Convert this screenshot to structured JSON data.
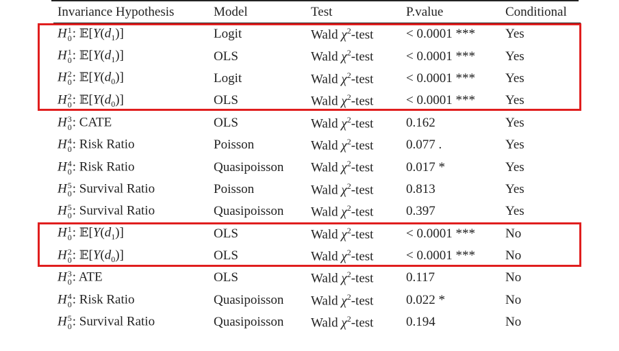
{
  "table": {
    "header": {
      "hypothesis": "Invariance Hypothesis",
      "model": "Model",
      "test": "Test",
      "pvalue": "P.value",
      "conditional": "Conditional"
    },
    "rows": [
      {
        "h_sup": "1",
        "h_sub": "0",
        "target_kind": "expectation",
        "d_sub": "1",
        "label": "",
        "model": "Logit",
        "test_word": "Wald",
        "test_sup": "2",
        "test_suffix": "-test",
        "pvalue": "< 0.0001 ***",
        "conditional": "Yes"
      },
      {
        "h_sup": "1",
        "h_sub": "0",
        "target_kind": "expectation",
        "d_sub": "1",
        "label": "",
        "model": "OLS",
        "test_word": "Wald",
        "test_sup": "2",
        "test_suffix": "-test",
        "pvalue": "< 0.0001 ***",
        "conditional": "Yes"
      },
      {
        "h_sup": "2",
        "h_sub": "0",
        "target_kind": "expectation",
        "d_sub": "0",
        "label": "",
        "model": "Logit",
        "test_word": "Wald",
        "test_sup": "2",
        "test_suffix": "-test",
        "pvalue": "< 0.0001 ***",
        "conditional": "Yes"
      },
      {
        "h_sup": "2",
        "h_sub": "0",
        "target_kind": "expectation",
        "d_sub": "0",
        "label": "",
        "model": "OLS",
        "test_word": "Wald",
        "test_sup": "2",
        "test_suffix": "-test",
        "pvalue": "< 0.0001 ***",
        "conditional": "Yes"
      },
      {
        "h_sup": "3",
        "h_sub": "0",
        "target_kind": "text",
        "d_sub": "",
        "label": "CATE",
        "model": "OLS",
        "test_word": "Wald",
        "test_sup": "2",
        "test_suffix": "-test",
        "pvalue": "0.162",
        "conditional": "Yes"
      },
      {
        "h_sup": "4",
        "h_sub": "0",
        "target_kind": "text",
        "d_sub": "",
        "label": "Risk Ratio",
        "model": "Poisson",
        "test_word": "Wald",
        "test_sup": "2",
        "test_suffix": "-test",
        "pvalue": "0.077 .",
        "conditional": "Yes"
      },
      {
        "h_sup": "4",
        "h_sub": "0",
        "target_kind": "text",
        "d_sub": "",
        "label": "Risk Ratio",
        "model": "Quasipoisson",
        "test_word": "Wald",
        "test_sup": "2",
        "test_suffix": "-test",
        "pvalue": "0.017 *",
        "conditional": "Yes"
      },
      {
        "h_sup": "5",
        "h_sub": "0",
        "target_kind": "text",
        "d_sub": "",
        "label": "Survival Ratio",
        "model": "Poisson",
        "test_word": "Wald",
        "test_sup": "2",
        "test_suffix": "-test",
        "pvalue": "0.813",
        "conditional": "Yes"
      },
      {
        "h_sup": "5",
        "h_sub": "0",
        "target_kind": "text",
        "d_sub": "",
        "label": "Survival Ratio",
        "model": "Quasipoisson",
        "test_word": "Wald",
        "test_sup": "2",
        "test_suffix": "-test",
        "pvalue": "0.397",
        "conditional": "Yes"
      },
      {
        "h_sup": "1",
        "h_sub": "0",
        "target_kind": "expectation",
        "d_sub": "1",
        "label": "",
        "model": "OLS",
        "test_word": "Wald",
        "test_sup": "2",
        "test_suffix": "-test",
        "pvalue": "< 0.0001 ***",
        "conditional": "No"
      },
      {
        "h_sup": "2",
        "h_sub": "0",
        "target_kind": "expectation",
        "d_sub": "0",
        "label": "",
        "model": "OLS",
        "test_word": "Wald",
        "test_sup": "2",
        "test_suffix": "-test",
        "pvalue": "< 0.0001 ***",
        "conditional": "No"
      },
      {
        "h_sup": "3",
        "h_sub": "0",
        "target_kind": "text",
        "d_sub": "",
        "label": "ATE",
        "model": "OLS",
        "test_word": "Wald",
        "test_sup": "2",
        "test_suffix": "-test",
        "pvalue": "0.117",
        "conditional": "No"
      },
      {
        "h_sup": "4",
        "h_sub": "0",
        "target_kind": "text",
        "d_sub": "",
        "label": "Risk Ratio",
        "model": "Quasipoisson",
        "test_word": "Wald",
        "test_sup": "2",
        "test_suffix": "-test",
        "pvalue": "0.022 *",
        "conditional": "No"
      },
      {
        "h_sup": "5",
        "h_sub": "0",
        "target_kind": "text",
        "d_sub": "",
        "label": "Survival Ratio",
        "model": "Quasipoisson",
        "test_word": "Wald",
        "test_sup": "2",
        "test_suffix": "-test",
        "pvalue": "0.194",
        "conditional": "No"
      }
    ]
  },
  "symbols": {
    "hypothesis_letter": "H",
    "expectation_symbol": "𝔼",
    "outcome_letter": "Y",
    "treatment_letter": "d",
    "chi_symbol": "χ"
  },
  "highlight_color": "#e01e1e"
}
